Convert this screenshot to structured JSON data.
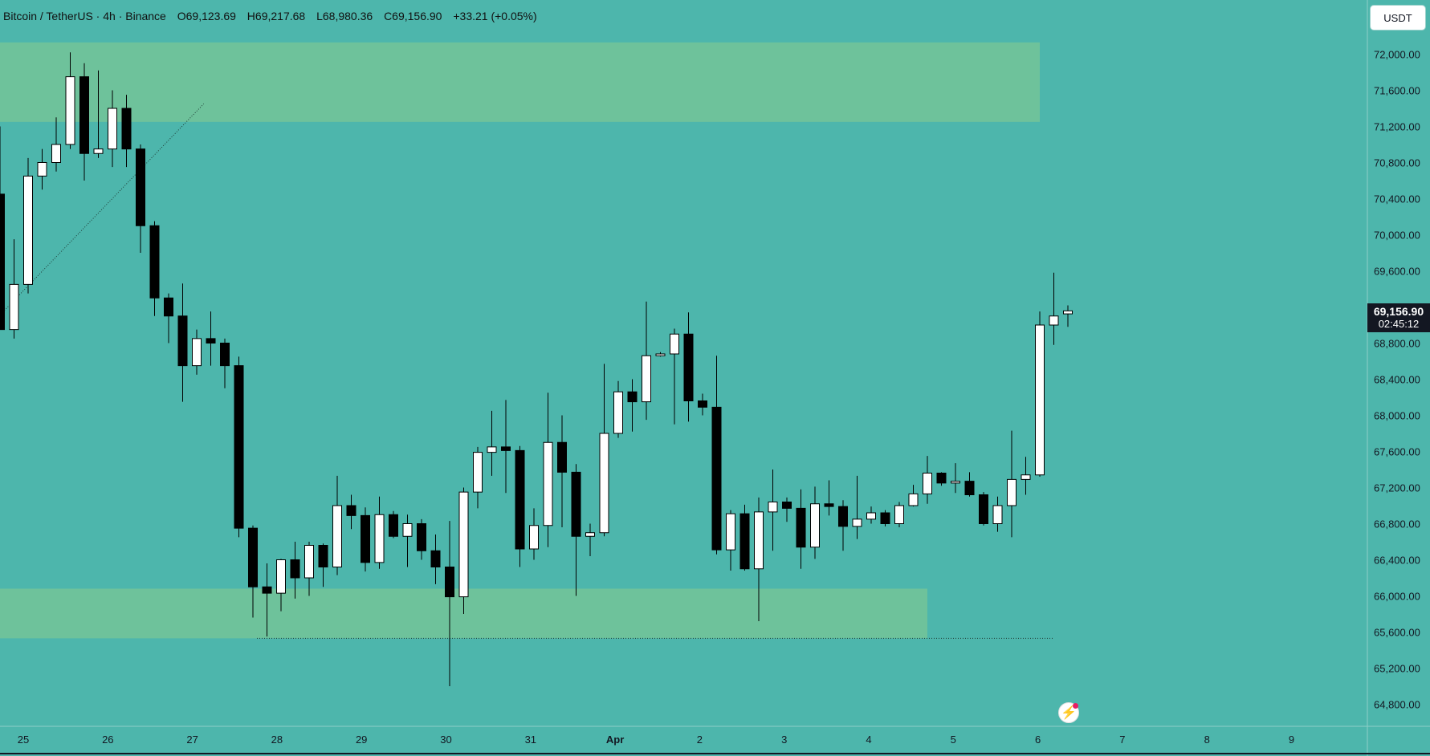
{
  "header": {
    "symbol": "Bitcoin / TetherUS · 4h · Binance",
    "open": "O69,123.69",
    "high": "H69,217.68",
    "low": "L68,980.36",
    "close": "C69,156.90",
    "change": "+33.21 (+0.05%)"
  },
  "currency_button": "USDT",
  "last_price": {
    "price": "69,156.90",
    "countdown": "02:45:12"
  },
  "icons": {
    "flash": "lightning-icon"
  },
  "colors": {
    "background": "#4db6ac",
    "zone": "#6ec29b",
    "up_candle": "#ffffff",
    "down_candle": "#000000",
    "last_price_bg": "#131722"
  },
  "chart_data": {
    "type": "candlestick",
    "symbol": "Bitcoin / TetherUS",
    "interval": "4h",
    "exchange": "Binance",
    "y_ticks": [
      72000,
      71600,
      71200,
      70800,
      70400,
      70000,
      69600,
      69200,
      68800,
      68400,
      68000,
      67600,
      67200,
      66800,
      66400,
      66000,
      65600,
      65200,
      64800
    ],
    "y_tick_labels": [
      "72,000.00",
      "71,600.00",
      "71,200.00",
      "70,800.00",
      "70,400.00",
      "70,000.00",
      "69,600.00",
      "69,200.00",
      "68,800.00",
      "68,400.00",
      "68,000.00",
      "67,600.00",
      "67,200.00",
      "66,800.00",
      "66,400.00",
      "66,000.00",
      "65,600.00",
      "65,200.00",
      "64,800.00"
    ],
    "x_tick_labels": [
      "25",
      "26",
      "27",
      "28",
      "29",
      "30",
      "31",
      "Apr",
      "2",
      "3",
      "4",
      "5",
      "6",
      "7",
      "8",
      "9"
    ],
    "zones": [
      {
        "from_candle": 0,
        "to_candle": 74,
        "low": 71250,
        "high": 72130
      },
      {
        "from_candle": 0,
        "to_candle": 66,
        "low": 65530,
        "high": 66080
      }
    ],
    "support_line": {
      "price": 65530,
      "from_candle": 18,
      "to_candle": 75
    },
    "trend_line": {
      "from": [
        -1,
        68950
      ],
      "to": [
        14.5,
        71450
      ]
    },
    "candles": [
      [
        70450,
        71200,
        68950,
        68950
      ],
      [
        68950,
        69950,
        68850,
        69450
      ],
      [
        69450,
        70850,
        69350,
        70650
      ],
      [
        70650,
        70950,
        70500,
        70800
      ],
      [
        70800,
        71300,
        70700,
        71000
      ],
      [
        71000,
        72020,
        70950,
        71750
      ],
      [
        71750,
        71900,
        70600,
        70900
      ],
      [
        70900,
        71820,
        70850,
        70950
      ],
      [
        70950,
        71600,
        70750,
        71400
      ],
      [
        71400,
        71550,
        70750,
        70950
      ],
      [
        70950,
        71000,
        69800,
        70100
      ],
      [
        70100,
        70150,
        69100,
        69300
      ],
      [
        69300,
        69350,
        68800,
        69100
      ],
      [
        69100,
        69460,
        68150,
        68550
      ],
      [
        68550,
        68950,
        68450,
        68850
      ],
      [
        68850,
        69150,
        68550,
        68800
      ],
      [
        68800,
        68850,
        68300,
        68550
      ],
      [
        68550,
        68650,
        66650,
        66750
      ],
      [
        66750,
        66780,
        65760,
        66100
      ],
      [
        66100,
        66360,
        65550,
        66030
      ],
      [
        66030,
        66410,
        65830,
        66400
      ],
      [
        66400,
        66600,
        65970,
        66200
      ],
      [
        66200,
        66600,
        66000,
        66560
      ],
      [
        66560,
        66580,
        66100,
        66320
      ],
      [
        66320,
        67330,
        66230,
        67000
      ],
      [
        67000,
        67120,
        66740,
        66890
      ],
      [
        66890,
        66980,
        66270,
        66370
      ],
      [
        66370,
        67100,
        66300,
        66900
      ],
      [
        66900,
        66940,
        66640,
        66660
      ],
      [
        66660,
        66900,
        66320,
        66800
      ],
      [
        66800,
        66850,
        66400,
        66500
      ],
      [
        66500,
        66680,
        66130,
        66320
      ],
      [
        66320,
        66830,
        65000,
        65990
      ],
      [
        65990,
        67200,
        65800,
        67150
      ],
      [
        67150,
        67650,
        66970,
        67590
      ],
      [
        67590,
        68050,
        67330,
        67650
      ],
      [
        67650,
        68170,
        67140,
        67610
      ],
      [
        67610,
        67660,
        66320,
        66520
      ],
      [
        66520,
        66970,
        66400,
        66780
      ],
      [
        66780,
        68250,
        66540,
        67700
      ],
      [
        67700,
        68000,
        66760,
        67370
      ],
      [
        67370,
        67460,
        66000,
        66660
      ],
      [
        66660,
        66800,
        66440,
        66700
      ],
      [
        66700,
        68570,
        66660,
        67800
      ],
      [
        67800,
        68380,
        67750,
        68260
      ],
      [
        68260,
        68400,
        67820,
        68150
      ],
      [
        68150,
        69260,
        67950,
        68660
      ],
      [
        68660,
        68700,
        68650,
        68680
      ],
      [
        68680,
        68960,
        67900,
        68900
      ],
      [
        68900,
        69140,
        67930,
        68160
      ],
      [
        68160,
        68240,
        68000,
        68090
      ],
      [
        68090,
        68660,
        66460,
        66510
      ],
      [
        66510,
        66950,
        66280,
        66910
      ],
      [
        66910,
        67010,
        66280,
        66300
      ],
      [
        66300,
        67090,
        65720,
        66930
      ],
      [
        66930,
        67400,
        66500,
        67040
      ],
      [
        67040,
        67090,
        66820,
        66970
      ],
      [
        66970,
        67180,
        66300,
        66540
      ],
      [
        66540,
        67210,
        66410,
        67020
      ],
      [
        67020,
        67280,
        66890,
        66990
      ],
      [
        66990,
        67060,
        66500,
        66770
      ],
      [
        66770,
        67330,
        66630,
        66850
      ],
      [
        66850,
        66990,
        66800,
        66920
      ],
      [
        66920,
        66950,
        66770,
        66800
      ],
      [
        66800,
        67040,
        66760,
        67000
      ],
      [
        67000,
        67230,
        66990,
        67130
      ],
      [
        67130,
        67550,
        67020,
        67360
      ],
      [
        67360,
        67370,
        67220,
        67250
      ],
      [
        67250,
        67470,
        67140,
        67270
      ],
      [
        67270,
        67370,
        67100,
        67120
      ],
      [
        67120,
        67150,
        66780,
        66800
      ],
      [
        66800,
        67100,
        66710,
        67000
      ],
      [
        67000,
        67830,
        66650,
        67290
      ],
      [
        67290,
        67540,
        67120,
        67340
      ],
      [
        67340,
        69150,
        67320,
        69000
      ],
      [
        69000,
        69580,
        68780,
        69100
      ],
      [
        69123.69,
        69217.68,
        68980.36,
        69156.9
      ]
    ]
  }
}
